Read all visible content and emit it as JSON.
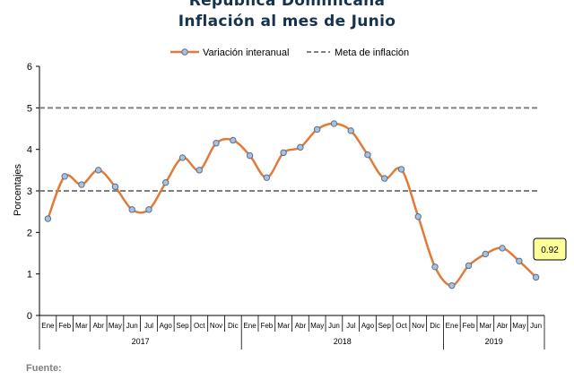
{
  "header": {
    "title_line1": "República Dominicana",
    "title_line2": "Inflación al mes de Junio"
  },
  "footer": {
    "source_label": "Fuente:"
  },
  "colors": {
    "series": "#e07b39",
    "marker_fill": "#a9c1e0",
    "marker_stroke": "#5a6f8c",
    "target": "#808080",
    "axis": "#000000",
    "callout_fill": "#ffff99"
  },
  "chart_data": {
    "type": "line",
    "title": "Inflación al mes de Junio",
    "ylabel": "Porcentajes",
    "xlabel": "",
    "ylim": [
      0,
      6
    ],
    "yticks": [
      0,
      1,
      2,
      3,
      4,
      5,
      6
    ],
    "grid": false,
    "legend_position": "top-center",
    "legend": [
      "Variación interanual",
      "Meta de inflación"
    ],
    "categories": [
      "Ene",
      "Feb",
      "Mar",
      "Abr",
      "May",
      "Jun",
      "Jul",
      "Ago",
      "Sep",
      "Oct",
      "Nov",
      "Dic",
      "Ene",
      "Feb",
      "Mar",
      "Abr",
      "May",
      "Jun",
      "Jul",
      "Ago",
      "Sep",
      "Oct",
      "Nov",
      "Dic",
      "Ene",
      "Feb",
      "Mar",
      "Abr",
      "May",
      "Jun"
    ],
    "year_groups": [
      {
        "label": "2017",
        "count": 12
      },
      {
        "label": "2018",
        "count": 12
      },
      {
        "label": "2019",
        "count": 6
      }
    ],
    "series": [
      {
        "name": "Variación interanual",
        "values": [
          2.33,
          3.35,
          3.15,
          3.5,
          3.1,
          2.55,
          2.55,
          3.2,
          3.8,
          3.5,
          4.15,
          4.22,
          3.85,
          3.32,
          3.92,
          4.05,
          4.48,
          4.62,
          4.45,
          3.87,
          3.3,
          3.52,
          2.38,
          1.17,
          0.72,
          1.2,
          1.48,
          1.62,
          1.31,
          0.92
        ]
      }
    ],
    "target_lines": [
      {
        "name": "Meta de inflación",
        "values": [
          3,
          5
        ]
      }
    ],
    "annotations": [
      {
        "text": "0.92",
        "index": 29
      }
    ]
  }
}
